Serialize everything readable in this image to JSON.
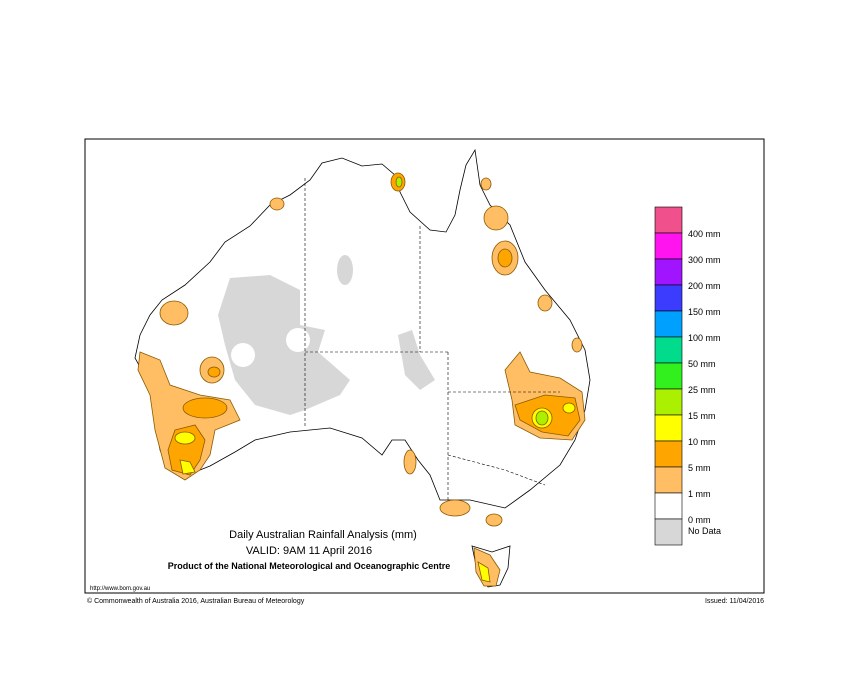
{
  "title": "Daily Australian Rainfall Analysis (mm)",
  "valid": "VALID: 9AM 11 April 2016",
  "product": "Product of the National Meteorological and Oceanographic Centre",
  "url": "http://www.bom.gov.au",
  "copyright": "© Commonwealth of Australia 2016, Australian Bureau of Meteorology",
  "issued": "Issued: 11/04/2016",
  "legend": {
    "colors": [
      "#f0508c",
      "#ff14f0",
      "#a014ff",
      "#3c3cff",
      "#00a0ff",
      "#00dc8c",
      "#32f01e",
      "#aaf000",
      "#ffff00",
      "#ffa500",
      "#ffbe64",
      "#ffffff",
      "#d7d7d7"
    ],
    "labels": [
      "400 mm",
      "300 mm",
      "200 mm",
      "150 mm",
      "100 mm",
      "50 mm",
      "25 mm",
      "15 mm",
      "10 mm",
      "5 mm",
      "1 mm",
      "0 mm"
    ],
    "no_data_label": "No Data"
  }
}
